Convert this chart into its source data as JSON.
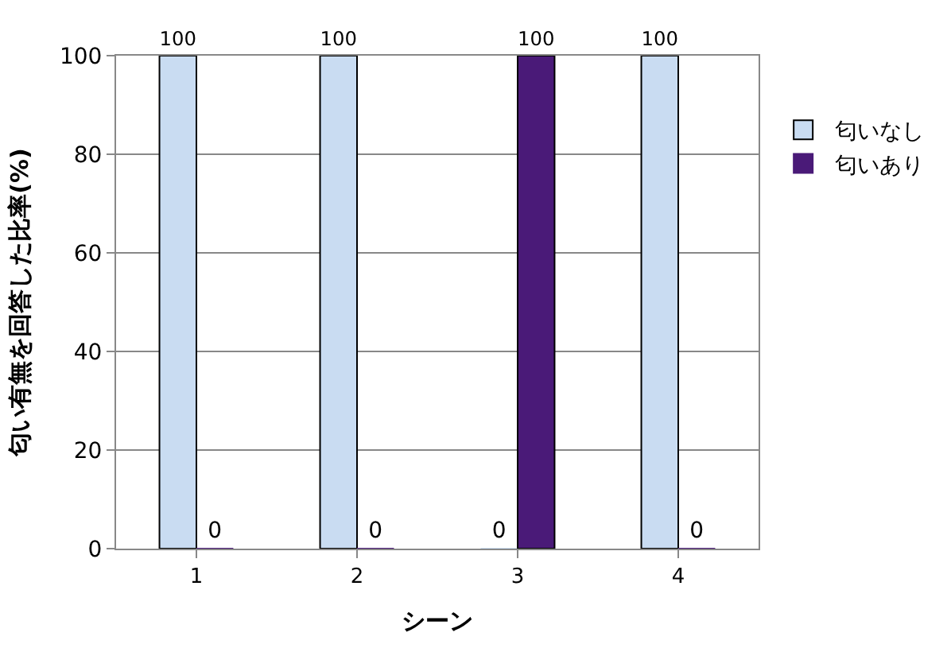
{
  "chart_data": {
    "type": "bar",
    "categories": [
      "1",
      "2",
      "3",
      "4"
    ],
    "xlabel": "シーン",
    "ylabel": "匂い有無を回答した比率(%)",
    "series": [
      {
        "name": "匂いなし",
        "color": "#c9dcf2",
        "values": [
          100,
          100,
          0,
          100
        ]
      },
      {
        "name": "匂いあり",
        "color": "#4a1a78",
        "values": [
          0,
          0,
          100,
          0
        ]
      }
    ],
    "ylim": [
      0,
      100
    ],
    "yticks": [
      0,
      20,
      40,
      60,
      80,
      100
    ],
    "grid": "y",
    "legend": "right",
    "data_labels": true
  }
}
